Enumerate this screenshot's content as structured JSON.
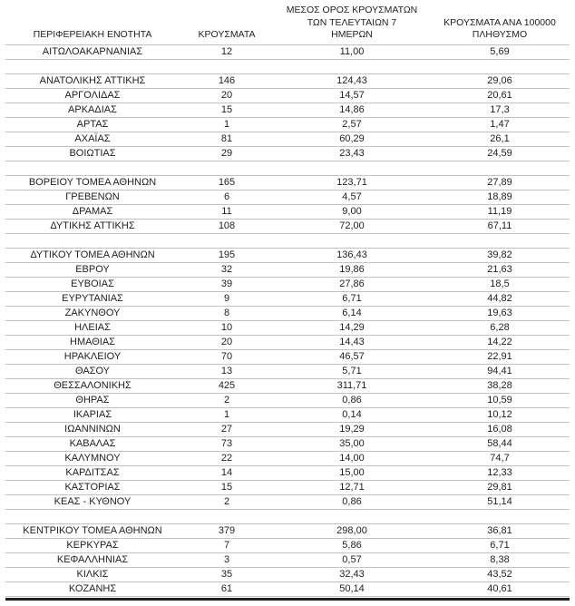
{
  "colors": {
    "text": "#1f1f1f",
    "gridline": "#c3c3c3",
    "bottom_rule": "#1f1f1f",
    "background": "#ffffff"
  },
  "chart_data": {
    "type": "table",
    "title": "",
    "columns": [
      "ΠΕΡΙΦΕΡΕΙΑΚΗ ΕΝΟΤΗΤΑ",
      "ΚΡΟΥΣΜΑΤΑ",
      "ΜΕΣΟΣ ΟΡΟΣ ΚΡΟΥΣΜΑΤΩΝ ΤΩΝ ΤΕΛΕΥΤΑΙΩΝ 7 ΗΜΕΡΩΝ",
      "ΚΡΟΥΣΜΑΤΑ ΑΝΑ 100000 ΠΛΗΘΥΣΜΟ"
    ],
    "header_lines": [
      [
        "ΠΕΡΙΦΕΡΕΙΑΚΗ ΕΝΟΤΗΤΑ"
      ],
      [
        "ΚΡΟΥΣΜΑΤΑ"
      ],
      [
        "ΜΕΣΟΣ ΟΡΟΣ ΚΡΟΥΣΜΑΤΩΝ",
        "ΤΩΝ ΤΕΛΕΥΤΑΙΩΝ 7",
        "ΗΜΕΡΩΝ"
      ],
      [
        "ΚΡΟΥΣΜΑΤΑ ΑΝΑ 100000",
        "ΠΛΗΘΥΣΜΟ"
      ]
    ],
    "rows": [
      [
        "ΑΙΤΩΛΟΑΚΑΡΝΑΝΙΑΣ",
        "12",
        "11,00",
        "5,69"
      ],
      [
        "",
        "",
        "",
        ""
      ],
      [
        "ΑΝΑΤΟΛΙΚΗΣ ΑΤΤΙΚΗΣ",
        "146",
        "124,43",
        "29,06"
      ],
      [
        "ΑΡΓΟΛΙΔΑΣ",
        "20",
        "14,57",
        "20,61"
      ],
      [
        "ΑΡΚΑΔΙΑΣ",
        "15",
        "14,86",
        "17,3"
      ],
      [
        "ΑΡΤΑΣ",
        "1",
        "2,57",
        "1,47"
      ],
      [
        "ΑΧΑΪΑΣ",
        "81",
        "60,29",
        "26,1"
      ],
      [
        "ΒΟΙΩΤΙΑΣ",
        "29",
        "23,43",
        "24,59"
      ],
      [
        "",
        "",
        "",
        ""
      ],
      [
        "ΒΟΡΕΙΟΥ ΤΟΜΕΑ ΑΘΗΝΩΝ",
        "165",
        "123,71",
        "27,89"
      ],
      [
        "ΓΡΕΒΕΝΩΝ",
        "6",
        "4,57",
        "18,89"
      ],
      [
        "ΔΡΑΜΑΣ",
        "11",
        "9,00",
        "11,19"
      ],
      [
        "ΔΥΤΙΚΗΣ ΑΤΤΙΚΗΣ",
        "108",
        "72,00",
        "67,11"
      ],
      [
        "",
        "",
        "",
        ""
      ],
      [
        "ΔΥΤΙΚΟΥ ΤΟΜΕΑ ΑΘΗΝΩΝ",
        "195",
        "136,43",
        "39,82"
      ],
      [
        "ΕΒΡΟΥ",
        "32",
        "19,86",
        "21,63"
      ],
      [
        "ΕΥΒΟΙΑΣ",
        "39",
        "27,86",
        "18,5"
      ],
      [
        "ΕΥΡΥΤΑΝΙΑΣ",
        "9",
        "6,71",
        "44,82"
      ],
      [
        "ΖΑΚΥΝΘΟΥ",
        "8",
        "6,14",
        "19,63"
      ],
      [
        "ΗΛΕΙΑΣ",
        "10",
        "14,29",
        "6,28"
      ],
      [
        "ΗΜΑΘΙΑΣ",
        "20",
        "14,43",
        "14,22"
      ],
      [
        "ΗΡΑΚΛΕΙΟΥ",
        "70",
        "46,57",
        "22,91"
      ],
      [
        "ΘΑΣΟΥ",
        "13",
        "5,71",
        "94,41"
      ],
      [
        "ΘΕΣΣΑΛΟΝΙΚΗΣ",
        "425",
        "311,71",
        "38,28"
      ],
      [
        "ΘΗΡΑΣ",
        "2",
        "0,86",
        "10,59"
      ],
      [
        "ΙΚΑΡΙΑΣ",
        "1",
        "0,14",
        "10,12"
      ],
      [
        "ΙΩΑΝΝΙΝΩΝ",
        "27",
        "19,29",
        "16,08"
      ],
      [
        "ΚΑΒΑΛΑΣ",
        "73",
        "35,00",
        "58,44"
      ],
      [
        "ΚΑΛΥΜΝΟΥ",
        "22",
        "14,00",
        "74,7"
      ],
      [
        "ΚΑΡΔΙΤΣΑΣ",
        "14",
        "15,00",
        "12,33"
      ],
      [
        "ΚΑΣΤΟΡΙΑΣ",
        "15",
        "12,71",
        "29,81"
      ],
      [
        "ΚΕΑΣ - ΚΥΘΝΟΥ",
        "2",
        "0,86",
        "51,14"
      ],
      [
        "",
        "",
        "",
        ""
      ],
      [
        "ΚΕΝΤΡΙΚΟΥ ΤΟΜΕΑ ΑΘΗΝΩΝ",
        "379",
        "298,00",
        "36,81"
      ],
      [
        "ΚΕΡΚΥΡΑΣ",
        "7",
        "5,86",
        "6,71"
      ],
      [
        "ΚΕΦΑΛΛΗΝΙΑΣ",
        "3",
        "0,57",
        "8,38"
      ],
      [
        "ΚΙΛΚΙΣ",
        "35",
        "32,43",
        "43,52"
      ],
      [
        "ΚΟΖΑΝΗΣ",
        "61",
        "50,14",
        "40,61"
      ]
    ]
  }
}
